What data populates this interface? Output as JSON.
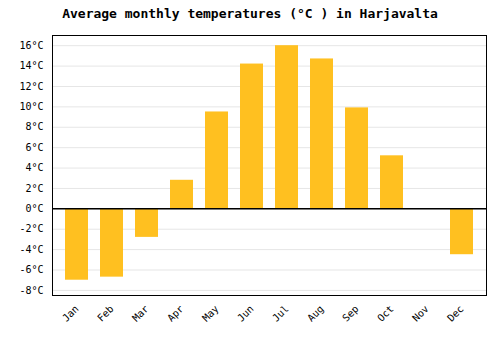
{
  "chart_data": {
    "type": "bar",
    "title": "Average monthly temperatures (°C ) in Harjavalta",
    "categories": [
      "Jan",
      "Feb",
      "Mar",
      "Apr",
      "May",
      "Jun",
      "Jul",
      "Aug",
      "Sep",
      "Oct",
      "Nov",
      "Dec"
    ],
    "values": [
      -7.0,
      -6.7,
      -2.8,
      2.8,
      9.5,
      14.2,
      16.0,
      14.7,
      9.9,
      5.2,
      0.0,
      -4.5
    ],
    "color": "#FFC020",
    "ylim": [
      -8.5,
      17.0
    ],
    "yticks": [
      {
        "value": -8,
        "label": "-8°C"
      },
      {
        "value": -6,
        "label": "-6°C"
      },
      {
        "value": -4,
        "label": "-4°C"
      },
      {
        "value": -2,
        "label": "-2°C"
      },
      {
        "value": 0,
        "label": "0°C"
      },
      {
        "value": 2,
        "label": "2°C"
      },
      {
        "value": 4,
        "label": "4°C"
      },
      {
        "value": 6,
        "label": "6°C"
      },
      {
        "value": 8,
        "label": "8°C"
      },
      {
        "value": 10,
        "label": "10°C"
      },
      {
        "value": 12,
        "label": "12°C"
      },
      {
        "value": 14,
        "label": "14°C"
      },
      {
        "value": 16,
        "label": "16°C"
      }
    ],
    "grid": true
  }
}
